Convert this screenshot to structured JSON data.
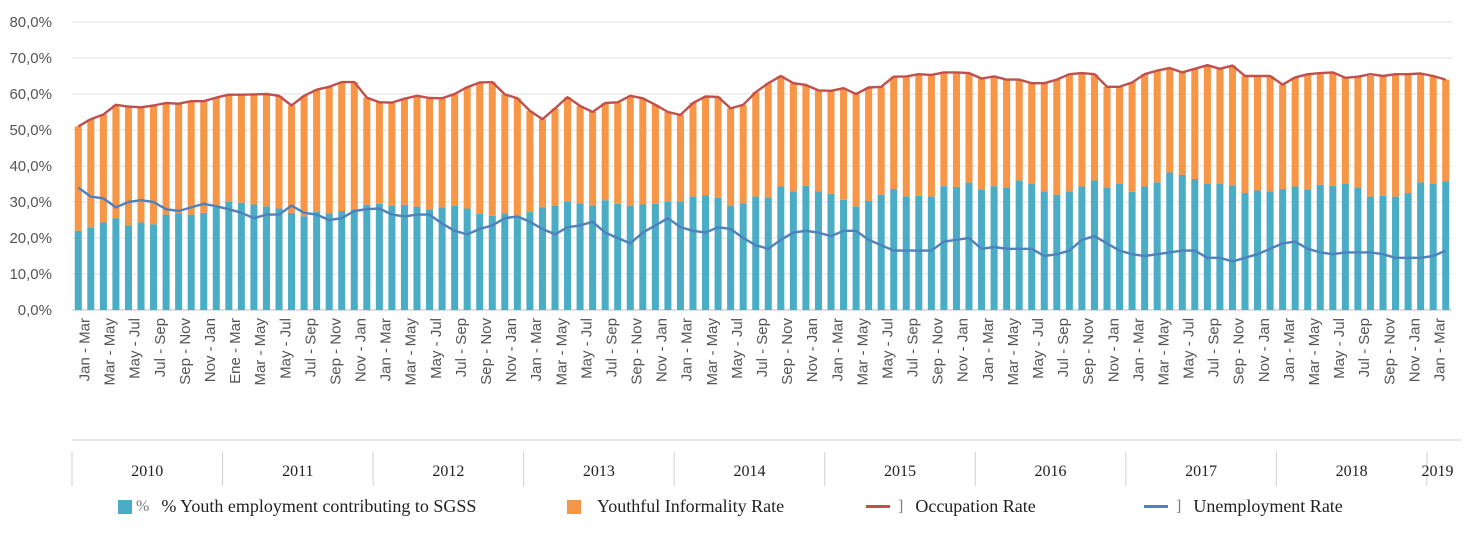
{
  "chart_data": {
    "type": "bar",
    "stacked": true,
    "ylim": [
      0,
      80
    ],
    "yticks": [
      "0,0%",
      "10,0%",
      "20,0%",
      "30,0%",
      "40,0%",
      "50,0%",
      "60,0%",
      "70,0%",
      "80,0%"
    ],
    "grid": true,
    "legend_position": "bottom",
    "xtick_labels": [
      "Jan - Mar",
      "Mar - May",
      "May - Jul",
      "Jul - Sep",
      "Sep - Nov",
      "Nov - Jan",
      "Ene - Mar",
      "Mar - May",
      "May - Jul",
      "Jul - Sep",
      "Sep - Nov",
      "Nov - Jan",
      "Jan - Mar",
      "Mar - May",
      "May - Jul",
      "Jul - Sep",
      "Sep - Nov",
      "Nov - Jan",
      "Jan - Mar",
      "Mar - May",
      "May - Jul",
      "Jul - Sep",
      "Sep - Nov",
      "Nov - Jan",
      "Jan - Mar",
      "Mar - May",
      "May - Jul",
      "Jul - Sep",
      "Sep - Nov",
      "Nov - Jan",
      "Jan - Mar",
      "Mar - May",
      "May - Jul",
      "Jul - Sep",
      "Sep - Nov",
      "Nov - Jan",
      "Jan - Mar",
      "Mar - May",
      "May - Jul",
      "Jul - Sep",
      "Sep - Nov",
      "Nov - Jan",
      "Jan - Mar",
      "Mar - May",
      "May - Jul",
      "Jul - Sep",
      "Sep - Nov",
      "Nov - Jan",
      "Jan - Mar",
      "Mar - May",
      "May - Jul",
      "Jul - Sep",
      "Sep - Nov",
      "Nov - Jan",
      "Jan - Mar"
    ],
    "years": [
      "2010",
      "2011",
      "2012",
      "2013",
      "2014",
      "2015",
      "2016",
      "2017",
      "2018",
      "2019"
    ],
    "series": [
      {
        "name": "% Youth employment contributing to SGSS",
        "kind": "bar",
        "color": "#4bacc6",
        "values": [
          22.0,
          23.0,
          24.3,
          25.5,
          23.5,
          24.3,
          23.8,
          26.5,
          26.8,
          26.5,
          27.0,
          28.5,
          30.2,
          29.8,
          29.3,
          28.8,
          28.2,
          27.0,
          26.0,
          27.2,
          26.8,
          27.5,
          28.0,
          29.2,
          29.5,
          29.0,
          29.2,
          28.7,
          28.0,
          28.5,
          28.9,
          28.2,
          26.7,
          26.2,
          26.8,
          26.3,
          27.2,
          28.5,
          29.0,
          30.2,
          29.6,
          29.0,
          30.5,
          29.5,
          29.0,
          29.3,
          29.5,
          30.0,
          30.2,
          31.5,
          31.8,
          31.2,
          29.0,
          29.6,
          31.5,
          31.3,
          34.3,
          33.0,
          34.5,
          33.0,
          32.3,
          30.6,
          28.8,
          30.3,
          32.0,
          33.6,
          31.6,
          31.7,
          31.5,
          34.4,
          34.2,
          35.4,
          33.5,
          34.4,
          34.0,
          36.0,
          35.0,
          33.0,
          32.0,
          33.0,
          34.3,
          36.0,
          34.0,
          35.0,
          32.8,
          34.3,
          35.5,
          38.2,
          37.5,
          36.4,
          35.0,
          35.0,
          34.6,
          32.5,
          33.2,
          33.0,
          33.6,
          34.3,
          33.5,
          34.8,
          34.5,
          35.0,
          34.0,
          31.5,
          31.7,
          31.5,
          32.5,
          35.5,
          35.0,
          35.7
        ]
      },
      {
        "name": "Youthful Informality Rate",
        "kind": "bar",
        "color": "#f79646",
        "values": [
          29.0,
          30.0,
          30.0,
          31.5,
          33.0,
          32.0,
          33.0,
          31.0,
          30.5,
          31.5,
          31.0,
          30.5,
          29.6,
          30.0,
          30.6,
          31.2,
          31.3,
          29.8,
          33.5,
          34.0,
          35.2,
          35.8,
          35.3,
          29.8,
          28.2,
          28.6,
          29.5,
          30.8,
          30.9,
          30.3,
          31.1,
          33.7,
          36.5,
          37.1,
          33.1,
          32.5,
          28.1,
          24.5,
          27.0,
          28.9,
          27.1,
          26.0,
          27.0,
          28.2,
          30.5,
          29.5,
          27.5,
          25.0,
          24.0,
          26.0,
          27.5,
          28.0,
          27.0,
          27.4,
          29.0,
          31.7,
          30.7,
          30.0,
          28.0,
          28.0,
          28.6,
          31.0,
          31.2,
          31.5,
          30.0,
          31.2,
          33.3,
          33.8,
          33.8,
          31.6,
          31.8,
          30.4,
          30.8,
          30.5,
          30.0,
          28.0,
          28.0,
          30.0,
          32.0,
          32.5,
          31.5,
          29.5,
          28.0,
          27.0,
          30.4,
          31.2,
          31.0,
          29.0,
          28.5,
          30.6,
          33.0,
          32.0,
          33.3,
          32.5,
          31.8,
          32.0,
          29.0,
          30.3,
          32.0,
          31.0,
          31.5,
          29.5,
          30.8,
          33.5,
          33.3,
          34.0,
          33.0,
          30.2,
          30.0,
          28.3
        ]
      },
      {
        "name": "Occupation Rate",
        "kind": "line",
        "color": "#c0504d",
        "values": [
          51.0,
          53.0,
          54.3,
          57.0,
          56.5,
          56.3,
          56.8,
          57.5,
          57.3,
          58.0,
          58.0,
          59.0,
          59.8,
          59.8,
          59.9,
          60.0,
          59.5,
          56.8,
          59.5,
          61.2,
          62.0,
          63.3,
          63.3,
          59.0,
          57.7,
          57.6,
          58.7,
          59.5,
          58.9,
          58.8,
          60.0,
          61.9,
          63.2,
          63.3,
          59.9,
          58.8,
          55.3,
          53.0,
          56.0,
          59.1,
          56.7,
          55.0,
          57.5,
          57.7,
          59.5,
          58.8,
          57.0,
          55.0,
          54.2,
          57.5,
          59.3,
          59.2,
          56.0,
          57.0,
          60.5,
          63.0,
          65.0,
          63.0,
          62.5,
          61.0,
          60.9,
          61.6,
          60.0,
          61.8,
          62.0,
          64.8,
          64.9,
          65.5,
          65.3,
          66.0,
          66.0,
          65.8,
          64.3,
          64.9,
          64.0,
          64.0,
          63.0,
          63.0,
          64.0,
          65.5,
          65.8,
          65.5,
          62.0,
          62.0,
          63.2,
          65.5,
          66.5,
          67.2,
          66.0,
          67.0,
          68.0,
          67.0,
          67.9,
          65.0,
          65.0,
          65.0,
          62.6,
          64.6,
          65.5,
          65.8,
          66.0,
          64.5,
          64.8,
          65.5,
          65.0,
          65.5,
          65.5,
          65.7,
          65.0,
          64.0
        ]
      },
      {
        "name": "Unemployment Rate",
        "kind": "line",
        "color": "#4f81bd",
        "values": [
          34.0,
          31.5,
          31.0,
          28.5,
          30.0,
          30.5,
          30.0,
          28.0,
          27.5,
          28.5,
          29.5,
          28.8,
          28.0,
          27.0,
          25.5,
          26.5,
          26.5,
          29.0,
          27.0,
          26.5,
          25.0,
          25.5,
          27.5,
          28.0,
          28.2,
          26.5,
          26.0,
          26.5,
          26.5,
          24.0,
          22.0,
          21.0,
          22.5,
          23.5,
          25.5,
          26.0,
          24.5,
          22.5,
          21.0,
          23.0,
          23.5,
          24.5,
          21.5,
          20.0,
          18.5,
          21.5,
          23.5,
          25.5,
          23.0,
          22.0,
          21.5,
          23.0,
          22.5,
          20.0,
          18.0,
          17.0,
          19.5,
          21.5,
          22.0,
          21.5,
          20.5,
          22.0,
          22.0,
          19.5,
          18.0,
          16.5,
          16.5,
          16.5,
          16.5,
          19.0,
          19.5,
          20.0,
          17.0,
          17.5,
          17.0,
          17.0,
          17.0,
          15.0,
          15.5,
          16.5,
          19.5,
          20.5,
          18.5,
          16.5,
          15.5,
          15.0,
          15.5,
          16.0,
          16.5,
          16.5,
          14.5,
          14.5,
          13.5,
          14.5,
          15.5,
          17.0,
          18.5,
          19.0,
          17.0,
          16.0,
          15.5,
          16.0,
          16.0,
          16.0,
          15.5,
          14.5,
          14.5,
          14.5,
          15.0,
          16.5
        ]
      }
    ]
  },
  "legend": {
    "items": [
      {
        "glyph": "%",
        "label": "% Youth employment contributing to SGSS"
      },
      {
        "label": "Youthful Informality Rate"
      },
      {
        "glyph": "]",
        "label": "Occupation Rate"
      },
      {
        "glyph": "]",
        "label": "Unemployment Rate"
      }
    ]
  }
}
